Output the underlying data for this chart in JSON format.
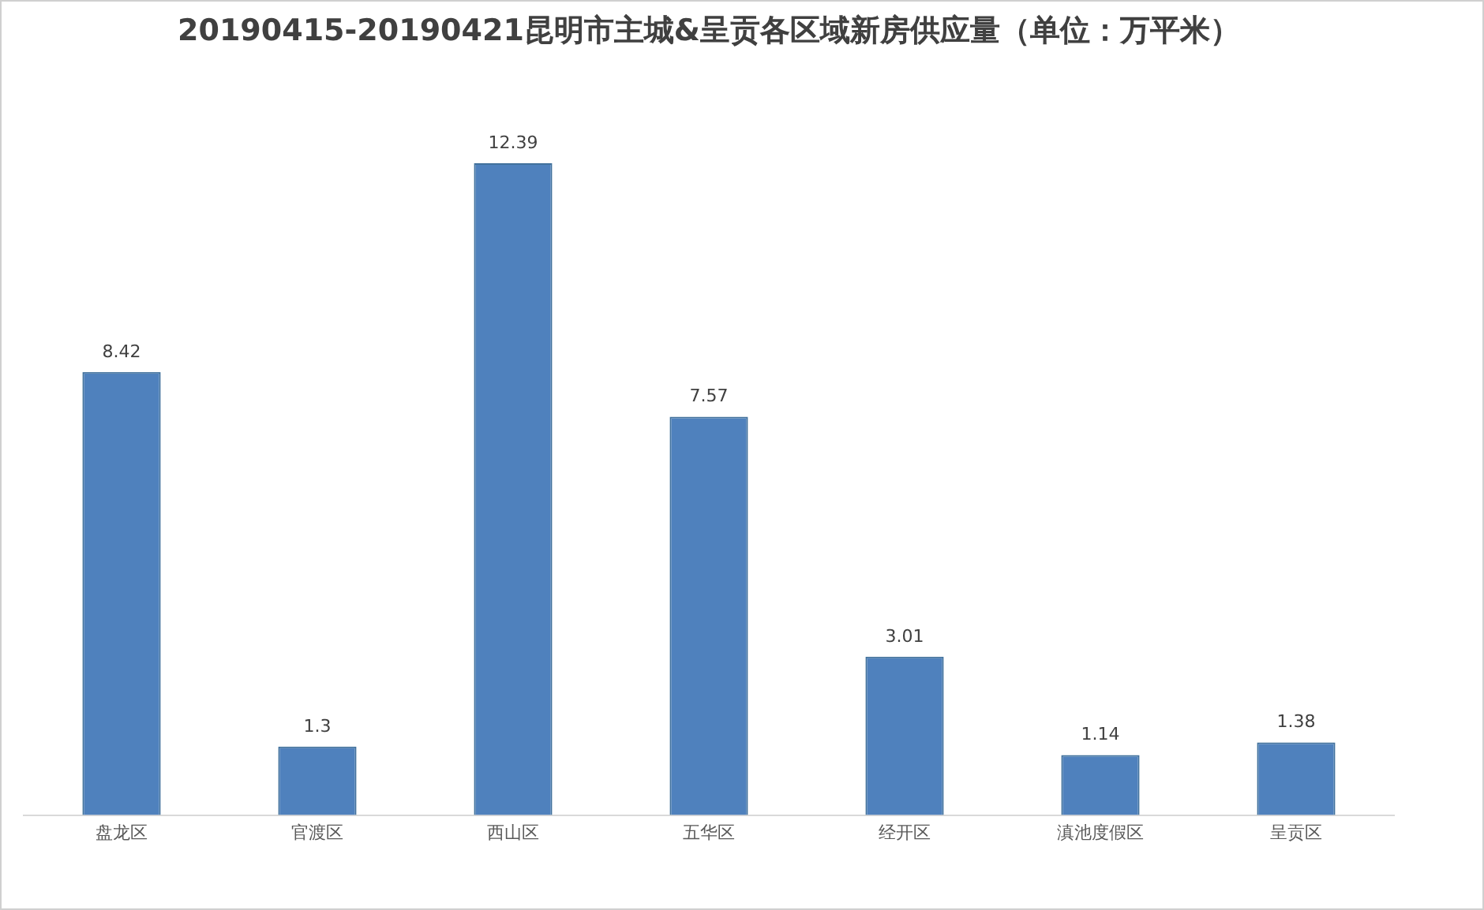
{
  "chart_data": {
    "type": "bar",
    "title": "20190415-20190421昆明市主城&呈贡各区域新房供应量（单位：万平米）",
    "categories": [
      "盘龙区",
      "官渡区",
      "西山区",
      "五华区",
      "经开区",
      "滇池度假区",
      "呈贡区"
    ],
    "values": [
      8.42,
      1.3,
      12.39,
      7.57,
      3.01,
      1.14,
      1.38
    ],
    "color": "#4f81bd",
    "tick_labels": "x",
    "data_labels": true
  }
}
